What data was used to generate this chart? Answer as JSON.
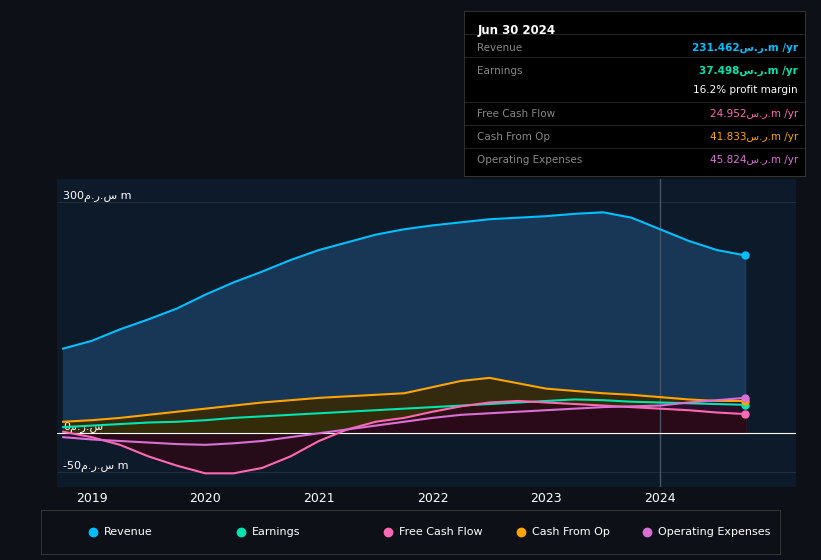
{
  "bg_color": "#0d1117",
  "plot_bg_color": "#0d1a2a",
  "ylim": [
    -70,
    330
  ],
  "xlim": [
    2018.7,
    2025.2
  ],
  "xticks": [
    2019,
    2020,
    2021,
    2022,
    2023,
    2024
  ],
  "info_box": {
    "title": "Jun 30 2024",
    "rows": [
      {
        "label": "Revenue",
        "value": "231.462س.ر.m /yr",
        "color": "#00bfff"
      },
      {
        "label": "Earnings",
        "value": "37.498س.ر.m /yr",
        "color": "#00e5b0"
      },
      {
        "label": "",
        "value": "16.2% profit margin",
        "color": "#ffffff"
      },
      {
        "label": "Free Cash Flow",
        "value": "24.952س.ر.m /yr",
        "color": "#ff69b4"
      },
      {
        "label": "Cash From Op",
        "value": "41.833س.ر.m /yr",
        "color": "#ffa500"
      },
      {
        "label": "Operating Expenses",
        "value": "45.824س.ر.m /yr",
        "color": "#da70d6"
      }
    ]
  },
  "series": {
    "revenue": {
      "color": "#00bfff",
      "fill_color": "#1a3a5c",
      "x": [
        2018.75,
        2019.0,
        2019.25,
        2019.5,
        2019.75,
        2020.0,
        2020.25,
        2020.5,
        2020.75,
        2021.0,
        2021.25,
        2021.5,
        2021.75,
        2022.0,
        2022.25,
        2022.5,
        2022.75,
        2023.0,
        2023.25,
        2023.5,
        2023.75,
        2024.0,
        2024.25,
        2024.5,
        2024.75
      ],
      "y": [
        110,
        120,
        135,
        148,
        162,
        180,
        196,
        210,
        225,
        238,
        248,
        258,
        265,
        270,
        274,
        278,
        280,
        282,
        285,
        287,
        280,
        265,
        250,
        238,
        231
      ]
    },
    "earnings": {
      "color": "#00e5b0",
      "fill_color": "#1a4a3a",
      "x": [
        2018.75,
        2019.0,
        2019.25,
        2019.5,
        2019.75,
        2020.0,
        2020.25,
        2020.5,
        2020.75,
        2021.0,
        2021.25,
        2021.5,
        2021.75,
        2022.0,
        2022.25,
        2022.5,
        2022.75,
        2023.0,
        2023.25,
        2023.5,
        2023.75,
        2024.0,
        2024.25,
        2024.5,
        2024.75
      ],
      "y": [
        8,
        10,
        12,
        14,
        15,
        17,
        20,
        22,
        24,
        26,
        28,
        30,
        32,
        34,
        36,
        38,
        40,
        42,
        44,
        43,
        41,
        40,
        39,
        38,
        37
      ]
    },
    "free_cash_flow": {
      "color": "#ff69b4",
      "fill_color": "#2a0a15",
      "x": [
        2018.75,
        2019.0,
        2019.25,
        2019.5,
        2019.75,
        2020.0,
        2020.25,
        2020.5,
        2020.75,
        2021.0,
        2021.25,
        2021.5,
        2021.75,
        2022.0,
        2022.25,
        2022.5,
        2022.75,
        2023.0,
        2023.25,
        2023.5,
        2023.75,
        2024.0,
        2024.25,
        2024.5,
        2024.75
      ],
      "y": [
        2,
        -5,
        -15,
        -30,
        -42,
        -52,
        -52,
        -45,
        -30,
        -10,
        5,
        15,
        20,
        28,
        35,
        40,
        42,
        40,
        38,
        36,
        34,
        32,
        30,
        27,
        25
      ]
    },
    "cash_from_op": {
      "color": "#ffa500",
      "fill_color": "#3a2800",
      "x": [
        2018.75,
        2019.0,
        2019.25,
        2019.5,
        2019.75,
        2020.0,
        2020.25,
        2020.5,
        2020.75,
        2021.0,
        2021.25,
        2021.5,
        2021.75,
        2022.0,
        2022.25,
        2022.5,
        2022.75,
        2023.0,
        2023.25,
        2023.5,
        2023.75,
        2024.0,
        2024.25,
        2024.5,
        2024.75
      ],
      "y": [
        15,
        17,
        20,
        24,
        28,
        32,
        36,
        40,
        43,
        46,
        48,
        50,
        52,
        60,
        68,
        72,
        65,
        58,
        55,
        52,
        50,
        47,
        44,
        42,
        42
      ]
    },
    "operating_expenses": {
      "color": "#da70d6",
      "fill_color": "#2a0a30",
      "x": [
        2018.75,
        2019.0,
        2019.25,
        2019.5,
        2019.75,
        2020.0,
        2020.25,
        2020.5,
        2020.75,
        2021.0,
        2021.25,
        2021.5,
        2021.75,
        2022.0,
        2022.25,
        2022.5,
        2022.75,
        2023.0,
        2023.25,
        2023.5,
        2023.75,
        2024.0,
        2024.25,
        2024.5,
        2024.75
      ],
      "y": [
        -5,
        -8,
        -10,
        -12,
        -14,
        -15,
        -13,
        -10,
        -5,
        0,
        5,
        10,
        15,
        20,
        24,
        26,
        28,
        30,
        32,
        34,
        35,
        36,
        40,
        43,
        46
      ]
    }
  },
  "vertical_line_x": 2024.0,
  "legend": [
    {
      "label": "Revenue",
      "color": "#00bfff"
    },
    {
      "label": "Earnings",
      "color": "#00e5b0"
    },
    {
      "label": "Free Cash Flow",
      "color": "#ff69b4"
    },
    {
      "label": "Cash From Op",
      "color": "#ffa500"
    },
    {
      "label": "Operating Expenses",
      "color": "#da70d6"
    }
  ]
}
